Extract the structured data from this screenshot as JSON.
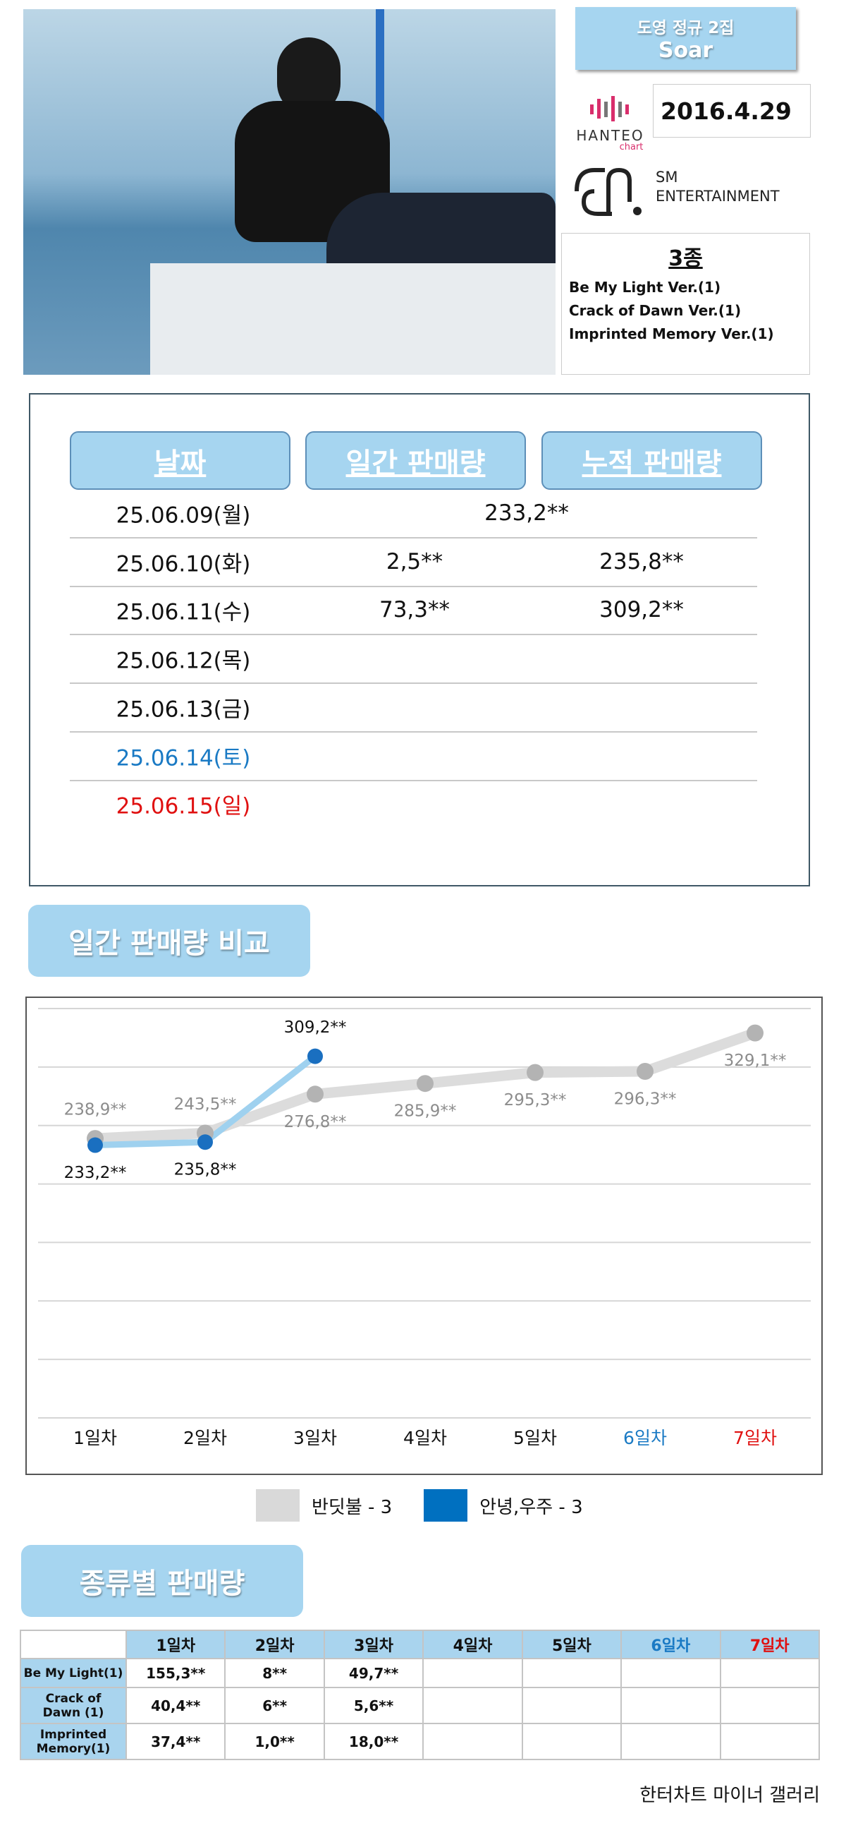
{
  "album": {
    "title": "도영 정규 2집",
    "name": "Soar",
    "release_date": "2016.4.29",
    "hanteo": "HANTEO",
    "hanteo_sub": "chart",
    "sm": "SM",
    "sm_sub": "ENTERTAINMENT",
    "versions_title": "3종",
    "versions": [
      "Be My Light Ver.(1)",
      "Crack of Dawn Ver.(1)",
      "Imprinted Memory Ver.(1)"
    ]
  },
  "sales_table": {
    "headers": [
      "날짜",
      "일간 판매량",
      "누적 판매량"
    ],
    "rows": [
      {
        "date": "25.06.09(월)",
        "combined": "233,2**"
      },
      {
        "date": "25.06.10(화)",
        "daily": "2,5**",
        "total": "235,8**"
      },
      {
        "date": "25.06.11(수)",
        "daily": "73,3**",
        "total": "309,2**"
      },
      {
        "date": "25.06.12(목)"
      },
      {
        "date": "25.06.13(금)"
      },
      {
        "date": "25.06.14(토)",
        "color": "#1a7ac4"
      },
      {
        "date": "25.06.15(일)",
        "color": "#e01010"
      }
    ]
  },
  "chart_heading": "일간 판매량 비교",
  "chart_data": {
    "type": "line",
    "categories": [
      "1일차",
      "2일차",
      "3일차",
      "4일차",
      "5일차",
      "6일차",
      "7일차"
    ],
    "category_colors": [
      "#111111",
      "#111111",
      "#111111",
      "#111111",
      "#111111",
      "#1a7ac4",
      "#e01010"
    ],
    "ylim": [
      0,
      350
    ],
    "yticks": [
      0,
      50,
      100,
      150,
      200,
      250,
      300,
      350
    ],
    "grid": true,
    "series": [
      {
        "name": "반딧불 - 3",
        "color": "#d9d9d9",
        "line_color": "#dcdcdc",
        "marker_color": "#b3b3b3",
        "label_color": "#8c8c8c",
        "values": [
          238.9,
          243.5,
          276.8,
          285.9,
          295.3,
          296.3,
          329.1
        ],
        "value_labels": [
          "238,9**",
          "243,5**",
          "276,8**",
          "285,9**",
          "295,3**",
          "296,3**",
          "329,1**"
        ]
      },
      {
        "name": "안녕,우주 - 3",
        "color": "#0070c0",
        "line_color": "#9fd1ef",
        "marker_color": "#1a6fc0",
        "label_color": "#111111",
        "values": [
          233.2,
          235.8,
          309.2,
          null,
          null,
          null,
          null
        ],
        "value_labels": [
          "233,2**",
          "235,8**",
          "309,2**",
          null,
          null,
          null,
          null
        ]
      }
    ]
  },
  "type_heading": "종류별 판매량",
  "type_table": {
    "columns": [
      "1일차",
      "2일차",
      "3일차",
      "4일차",
      "5일차",
      "6일차",
      "7일차"
    ],
    "column_colors": [
      "#111111",
      "#111111",
      "#111111",
      "#111111",
      "#111111",
      "#1a7ac4",
      "#e01010"
    ],
    "rows": [
      {
        "name_lines": [
          "Be My Light(1)"
        ],
        "values": [
          "155,3**",
          "8**",
          "49,7**"
        ]
      },
      {
        "name_lines": [
          "Crack of",
          "Dawn (1)"
        ],
        "values": [
          "40,4**",
          "6**",
          "5,6**"
        ]
      },
      {
        "name_lines": [
          "Imprinted",
          "Memory(1)"
        ],
        "values": [
          "37,4**",
          "1,0**",
          "18,0**"
        ]
      }
    ]
  },
  "footer": "한터차트 마이너 갤러리"
}
